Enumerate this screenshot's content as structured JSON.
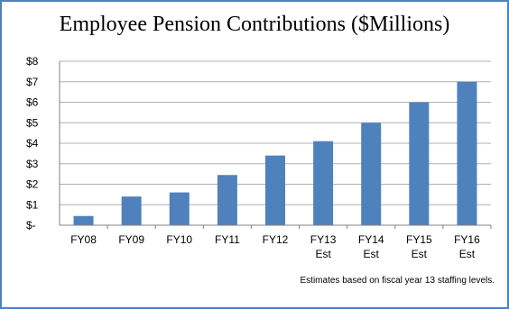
{
  "chart_data": {
    "type": "bar",
    "title": "Employee Pension Contributions ($Millions)",
    "categories": [
      "FY08",
      "FY09",
      "FY10",
      "FY11",
      "FY12",
      "FY13\nEst",
      "FY14\nEst",
      "FY15\nEst",
      "FY16\nEst"
    ],
    "values": [
      0.45,
      1.4,
      1.6,
      2.45,
      3.4,
      4.1,
      5.0,
      6.0,
      7.0
    ],
    "y_tick_labels": [
      "$-",
      "$1",
      "$2",
      "$3",
      "$4",
      "$5",
      "$6",
      "$7",
      "$8"
    ],
    "ylim": [
      0,
      8
    ],
    "grid": true,
    "legend": "none",
    "bar_color": "#4f81bd",
    "note": "Estimates based on fiscal year 13 staffing levels."
  },
  "colors": {
    "border": "#4f81bd",
    "grid": "#b0b0b0",
    "axis": "#808080"
  }
}
